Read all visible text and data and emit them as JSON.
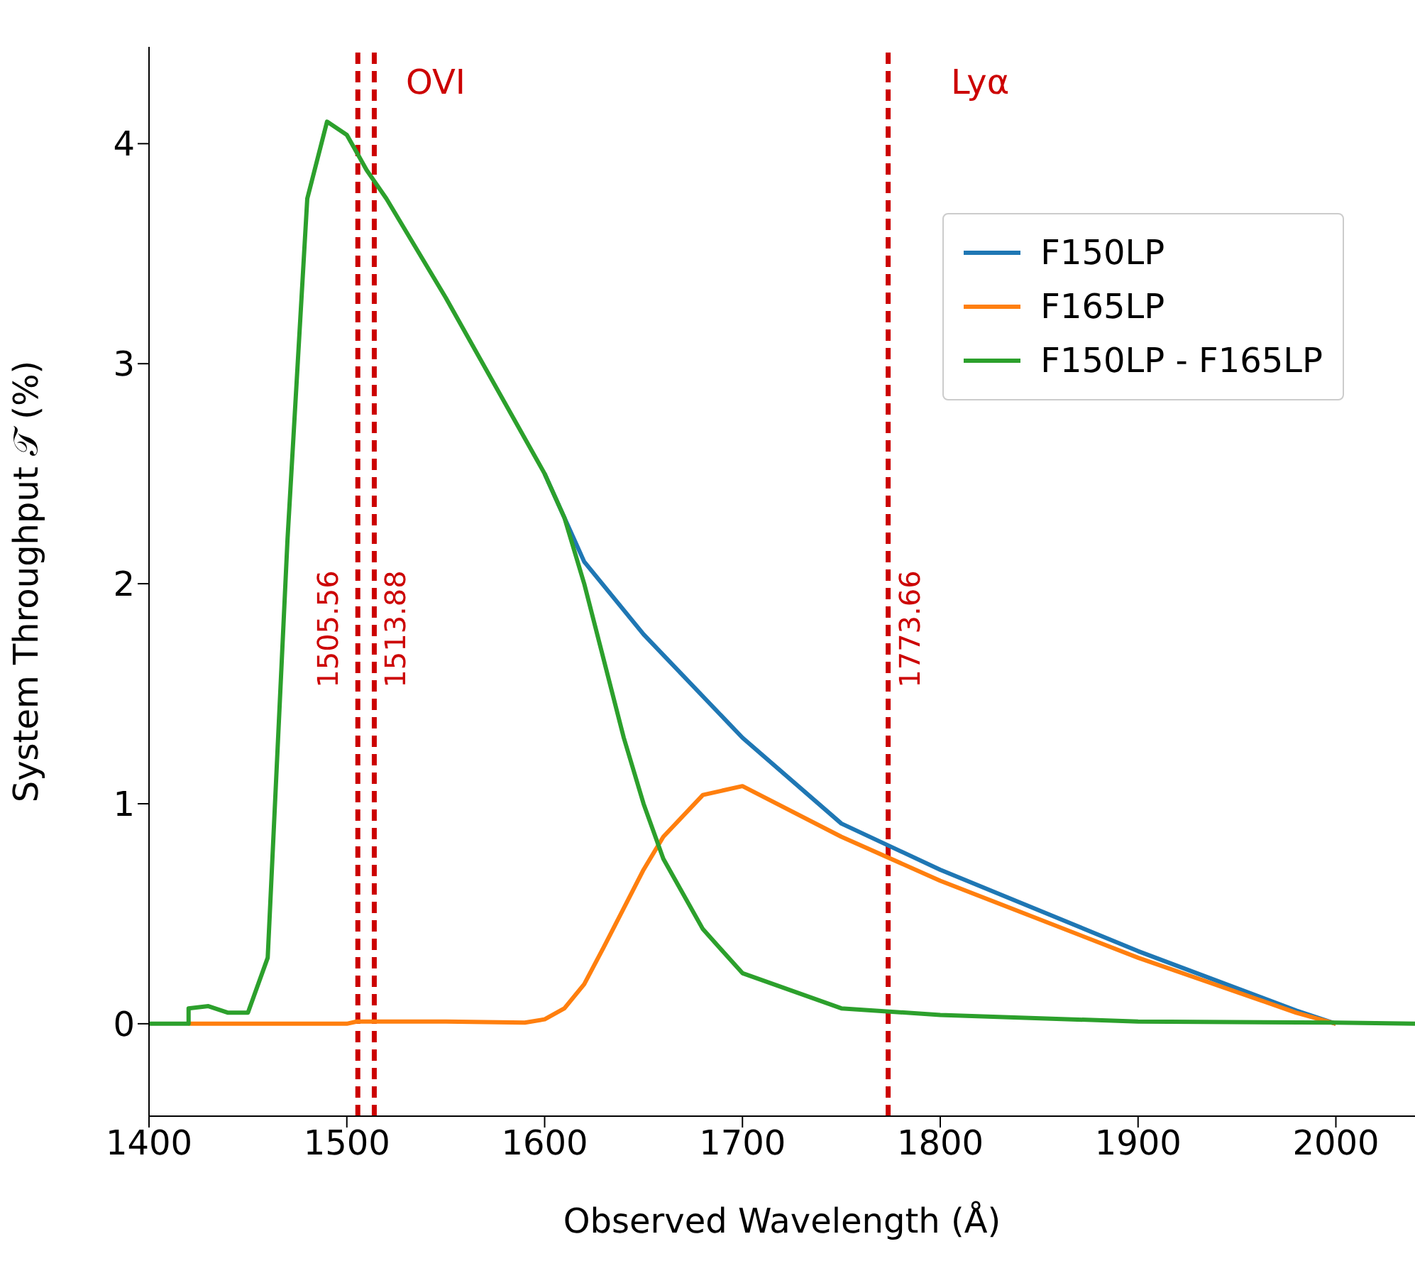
{
  "chart_data": {
    "type": "line",
    "xlabel": "Observed Wavelength (Å)",
    "ylabel": "System Throughput 𝒯 (%)",
    "xlim": [
      1400,
      2040
    ],
    "xticks": [
      1400,
      1500,
      1600,
      1700,
      1800,
      1900,
      2000
    ],
    "ylim": [
      -0.42,
      4.44
    ],
    "yticks": [
      0,
      1,
      2,
      3,
      4
    ],
    "grid": false,
    "legend": "top right",
    "marker": "none",
    "line_style": "solid",
    "series": [
      {
        "name": "F150LP",
        "color": "#1f77b4",
        "x": [
          1600,
          1620,
          1650,
          1700,
          1750,
          1800,
          1900,
          1980,
          2000
        ],
        "values": [
          2.5,
          2.1,
          1.77,
          1.3,
          0.91,
          0.7,
          0.33,
          0.06,
          0
        ]
      },
      {
        "name": "F165LP",
        "color": "#ff7f0e",
        "x": [
          1420,
          1500,
          1505,
          1550,
          1590,
          1600,
          1610,
          1620,
          1630,
          1650,
          1660,
          1680,
          1700,
          1750,
          1800,
          1900,
          1980,
          2000
        ],
        "values": [
          0,
          0,
          0.01,
          0.01,
          0.005,
          0.02,
          0.07,
          0.18,
          0.35,
          0.7,
          0.85,
          1.04,
          1.08,
          0.85,
          0.65,
          0.3,
          0.05,
          0
        ]
      },
      {
        "name": "F150LP - F165LP",
        "color": "#2ca02c",
        "x": [
          1400,
          1420,
          1420,
          1430,
          1440,
          1450,
          1460,
          1470,
          1480,
          1490,
          1500,
          1510,
          1520,
          1550,
          1600,
          1610,
          1620,
          1630,
          1640,
          1650,
          1660,
          1680,
          1700,
          1750,
          1800,
          1900,
          2000,
          2040
        ],
        "values": [
          0,
          0,
          0.07,
          0.08,
          0.05,
          0.05,
          0.3,
          2.2,
          3.75,
          4.1,
          4.04,
          3.88,
          3.75,
          3.3,
          2.5,
          2.3,
          2.0,
          1.65,
          1.3,
          1.0,
          0.75,
          0.43,
          0.23,
          0.07,
          0.04,
          0.01,
          0.005,
          0
        ]
      }
    ],
    "ref_lines": [
      {
        "axis": "x",
        "value": 1505.56,
        "label": "1505.56",
        "color": "#cc0000",
        "line_style": "dashed"
      },
      {
        "axis": "x",
        "value": 1513.88,
        "label": "1513.88",
        "color": "#cc0000",
        "line_style": "dashed"
      },
      {
        "axis": "x",
        "value": 1773.66,
        "label": "1773.66",
        "color": "#cc0000",
        "line_style": "dashed"
      }
    ],
    "annotations": [
      "OVI",
      "Lyα"
    ]
  }
}
